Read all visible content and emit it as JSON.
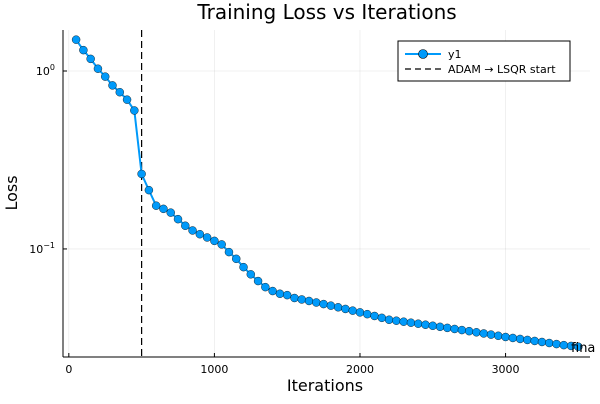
{
  "chart_data": {
    "type": "line",
    "title": "Training Loss vs Iterations",
    "xlabel": "Iterations",
    "ylabel": "Loss",
    "x_ticks": [
      0,
      1000,
      2000,
      3000
    ],
    "y_ticks": [
      {
        "value": 0.1,
        "base": "10",
        "exp": "−1"
      },
      {
        "value": 1,
        "base": "10",
        "exp": "0"
      }
    ],
    "xlim": [
      -40,
      3580
    ],
    "ylim": [
      0.0247,
      1.7
    ],
    "yscale": "log",
    "grid": true,
    "legend_position": "top-right",
    "series": [
      {
        "name": "y1",
        "color": "#009AFA",
        "x": [
          50,
          100,
          150,
          200,
          250,
          300,
          350,
          400,
          450,
          500,
          550,
          600,
          650,
          700,
          750,
          800,
          850,
          900,
          950,
          1000,
          1050,
          1100,
          1150,
          1200,
          1250,
          1300,
          1350,
          1400,
          1450,
          1500,
          1550,
          1600,
          1650,
          1700,
          1750,
          1800,
          1850,
          1900,
          1950,
          2000,
          2050,
          2100,
          2150,
          2200,
          2250,
          2300,
          2350,
          2400,
          2450,
          2500,
          2550,
          2600,
          2650,
          2700,
          2750,
          2800,
          2850,
          2900,
          2950,
          3000,
          3050,
          3100,
          3150,
          3200,
          3250,
          3300,
          3350,
          3400,
          3450,
          3500
        ],
        "y": [
          1.5,
          1.31,
          1.17,
          1.03,
          0.93,
          0.83,
          0.76,
          0.69,
          0.6,
          0.264,
          0.214,
          0.175,
          0.168,
          0.16,
          0.147,
          0.135,
          0.127,
          0.121,
          0.116,
          0.111,
          0.106,
          0.096,
          0.088,
          0.079,
          0.072,
          0.066,
          0.061,
          0.058,
          0.056,
          0.055,
          0.053,
          0.052,
          0.051,
          0.05,
          0.049,
          0.048,
          0.047,
          0.046,
          0.045,
          0.044,
          0.043,
          0.042,
          0.041,
          0.04,
          0.0395,
          0.039,
          0.0385,
          0.038,
          0.0375,
          0.037,
          0.0365,
          0.036,
          0.0355,
          0.035,
          0.0345,
          0.034,
          0.0335,
          0.033,
          0.0325,
          0.032,
          0.0316,
          0.0312,
          0.0308,
          0.0304,
          0.03,
          0.0296,
          0.0292,
          0.0288,
          0.0285,
          0.0282
        ]
      }
    ],
    "vline": {
      "x": 500,
      "name": "ADAM → LSQR start",
      "color": "#000000"
    },
    "annotation": {
      "text": "fina",
      "x": 3500,
      "y": 0.0282
    }
  }
}
